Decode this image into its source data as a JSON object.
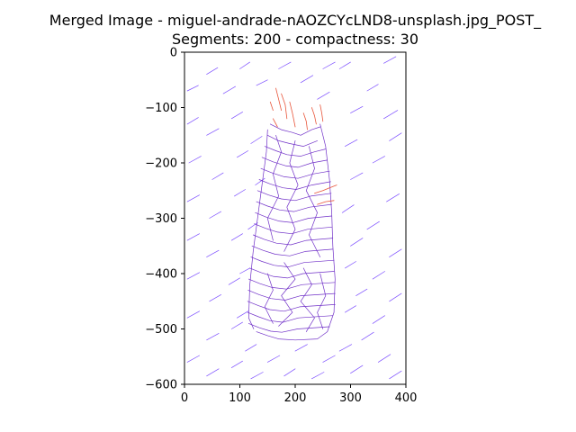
{
  "chart_data": {
    "type": "line",
    "title": "Merged Image - miguel-andrade-nAOZCYcLND8-unsplash.jpg_POST_",
    "subtitle": "Segments: 200 - compactness: 30",
    "xlim": [
      0,
      400
    ],
    "ylim": [
      -600,
      0
    ],
    "x_ticks": [
      {
        "value": 0,
        "label": "0"
      },
      {
        "value": 100,
        "label": "100"
      },
      {
        "value": 200,
        "label": "200"
      },
      {
        "value": 300,
        "label": "300"
      },
      {
        "value": 400,
        "label": "400"
      }
    ],
    "y_ticks": [
      {
        "value": 0,
        "label": "0"
      },
      {
        "value": -100,
        "label": "−100"
      },
      {
        "value": -200,
        "label": "−200"
      },
      {
        "value": -300,
        "label": "−300"
      },
      {
        "value": -400,
        "label": "−400"
      },
      {
        "value": -500,
        "label": "−500"
      },
      {
        "value": -600,
        "label": "−600"
      }
    ],
    "grid": false,
    "legend": "none",
    "colors": {
      "field_strokes": "#7b4dff",
      "object_strokes": "#7030c8",
      "highlight_strokes": "#e8553a"
    },
    "field_segments": [
      [
        [
          5,
          -70
        ],
        [
          25,
          -60
        ]
      ],
      [
        [
          40,
          -40
        ],
        [
          60,
          -28
        ]
      ],
      [
        [
          70,
          -75
        ],
        [
          92,
          -62
        ]
      ],
      [
        [
          100,
          -30
        ],
        [
          118,
          -18
        ]
      ],
      [
        [
          130,
          -60
        ],
        [
          150,
          -50
        ]
      ],
      [
        [
          280,
          -30
        ],
        [
          300,
          -18
        ]
      ],
      [
        [
          330,
          -70
        ],
        [
          350,
          -58
        ]
      ],
      [
        [
          360,
          -20
        ],
        [
          382,
          -8
        ]
      ],
      [
        [
          240,
          -85
        ],
        [
          262,
          -72
        ]
      ],
      [
        [
          300,
          -110
        ],
        [
          322,
          -98
        ]
      ],
      [
        [
          360,
          -120
        ],
        [
          385,
          -105
        ]
      ],
      [
        [
          5,
          -130
        ],
        [
          25,
          -118
        ]
      ],
      [
        [
          40,
          -150
        ],
        [
          62,
          -138
        ]
      ],
      [
        [
          85,
          -120
        ],
        [
          105,
          -108
        ]
      ],
      [
        [
          120,
          -165
        ],
        [
          140,
          -152
        ]
      ],
      [
        [
          8,
          -200
        ],
        [
          30,
          -188
        ]
      ],
      [
        [
          50,
          -230
        ],
        [
          70,
          -218
        ]
      ],
      [
        [
          95,
          -190
        ],
        [
          115,
          -178
        ]
      ],
      [
        [
          128,
          -240
        ],
        [
          145,
          -228
        ]
      ],
      [
        [
          290,
          -170
        ],
        [
          312,
          -158
        ]
      ],
      [
        [
          340,
          -200
        ],
        [
          362,
          -188
        ]
      ],
      [
        [
          370,
          -160
        ],
        [
          392,
          -146
        ]
      ],
      [
        [
          300,
          -230
        ],
        [
          322,
          -218
        ]
      ],
      [
        [
          5,
          -270
        ],
        [
          27,
          -258
        ]
      ],
      [
        [
          45,
          -300
        ],
        [
          66,
          -288
        ]
      ],
      [
        [
          90,
          -260
        ],
        [
          110,
          -248
        ]
      ],
      [
        [
          115,
          -320
        ],
        [
          132,
          -308
        ]
      ],
      [
        [
          285,
          -290
        ],
        [
          306,
          -276
        ]
      ],
      [
        [
          330,
          -320
        ],
        [
          352,
          -306
        ]
      ],
      [
        [
          365,
          -270
        ],
        [
          388,
          -256
        ]
      ],
      [
        [
          300,
          -350
        ],
        [
          322,
          -336
        ]
      ],
      [
        [
          5,
          -340
        ],
        [
          27,
          -328
        ]
      ],
      [
        [
          40,
          -370
        ],
        [
          62,
          -358
        ]
      ],
      [
        [
          85,
          -340
        ],
        [
          105,
          -328
        ]
      ],
      [
        [
          100,
          -400
        ],
        [
          118,
          -390
        ]
      ],
      [
        [
          290,
          -390
        ],
        [
          310,
          -378
        ]
      ],
      [
        [
          340,
          -410
        ],
        [
          362,
          -396
        ]
      ],
      [
        [
          370,
          -370
        ],
        [
          392,
          -356
        ]
      ],
      [
        [
          310,
          -440
        ],
        [
          330,
          -428
        ]
      ],
      [
        [
          5,
          -410
        ],
        [
          27,
          -398
        ]
      ],
      [
        [
          45,
          -450
        ],
        [
          66,
          -438
        ]
      ],
      [
        [
          80,
          -420
        ],
        [
          100,
          -408
        ]
      ],
      [
        [
          95,
          -480
        ],
        [
          115,
          -468
        ]
      ],
      [
        [
          290,
          -470
        ],
        [
          310,
          -458
        ]
      ],
      [
        [
          340,
          -490
        ],
        [
          362,
          -476
        ]
      ],
      [
        [
          370,
          -450
        ],
        [
          392,
          -436
        ]
      ],
      [
        [
          320,
          -520
        ],
        [
          342,
          -506
        ]
      ],
      [
        [
          5,
          -480
        ],
        [
          27,
          -468
        ]
      ],
      [
        [
          40,
          -520
        ],
        [
          62,
          -508
        ]
      ],
      [
        [
          85,
          -500
        ],
        [
          105,
          -488
        ]
      ],
      [
        [
          110,
          -540
        ],
        [
          130,
          -528
        ]
      ],
      [
        [
          150,
          -560
        ],
        [
          172,
          -548
        ]
      ],
      [
        [
          200,
          -540
        ],
        [
          222,
          -528
        ]
      ],
      [
        [
          250,
          -560
        ],
        [
          272,
          -548
        ]
      ],
      [
        [
          280,
          -540
        ],
        [
          302,
          -528
        ]
      ],
      [
        [
          5,
          -560
        ],
        [
          27,
          -548
        ]
      ],
      [
        [
          40,
          -585
        ],
        [
          62,
          -572
        ]
      ],
      [
        [
          85,
          -570
        ],
        [
          105,
          -558
        ]
      ],
      [
        [
          120,
          -590
        ],
        [
          142,
          -578
        ]
      ],
      [
        [
          180,
          -585
        ],
        [
          200,
          -572
        ]
      ],
      [
        [
          230,
          -590
        ],
        [
          252,
          -578
        ]
      ],
      [
        [
          300,
          -580
        ],
        [
          322,
          -566
        ]
      ],
      [
        [
          350,
          -560
        ],
        [
          372,
          -546
        ]
      ],
      [
        [
          370,
          -590
        ],
        [
          392,
          -576
        ]
      ],
      [
        [
          170,
          -30
        ],
        [
          192,
          -18
        ]
      ],
      [
        [
          210,
          -55
        ],
        [
          232,
          -42
        ]
      ],
      [
        [
          250,
          -30
        ],
        [
          272,
          -18
        ]
      ]
    ],
    "object_segments": [
      [
        [
          155,
          -130
        ],
        [
          175,
          -140
        ],
        [
          195,
          -145
        ],
        [
          210,
          -150
        ],
        [
          230,
          -140
        ],
        [
          245,
          -135
        ]
      ],
      [
        [
          150,
          -150
        ],
        [
          170,
          -160
        ],
        [
          190,
          -165
        ],
        [
          215,
          -170
        ],
        [
          240,
          -160
        ]
      ],
      [
        [
          145,
          -170
        ],
        [
          165,
          -178
        ],
        [
          185,
          -185
        ],
        [
          210,
          -188
        ],
        [
          235,
          -180
        ],
        [
          255,
          -175
        ]
      ],
      [
        [
          140,
          -190
        ],
        [
          160,
          -198
        ],
        [
          182,
          -205
        ],
        [
          205,
          -208
        ],
        [
          230,
          -200
        ],
        [
          258,
          -195
        ]
      ],
      [
        [
          138,
          -210
        ],
        [
          158,
          -218
        ],
        [
          180,
          -225
        ],
        [
          205,
          -228
        ],
        [
          232,
          -220
        ],
        [
          262,
          -215
        ]
      ],
      [
        [
          135,
          -230
        ],
        [
          155,
          -238
        ],
        [
          178,
          -245
        ],
        [
          202,
          -248
        ],
        [
          230,
          -240
        ],
        [
          264,
          -234
        ]
      ],
      [
        [
          132,
          -250
        ],
        [
          152,
          -258
        ],
        [
          175,
          -265
        ],
        [
          200,
          -268
        ],
        [
          228,
          -260
        ],
        [
          265,
          -255
        ]
      ],
      [
        [
          130,
          -270
        ],
        [
          150,
          -278
        ],
        [
          172,
          -285
        ],
        [
          198,
          -288
        ],
        [
          226,
          -280
        ],
        [
          266,
          -275
        ]
      ],
      [
        [
          128,
          -290
        ],
        [
          148,
          -298
        ],
        [
          170,
          -305
        ],
        [
          196,
          -308
        ],
        [
          224,
          -300
        ],
        [
          266,
          -296
        ]
      ],
      [
        [
          126,
          -310
        ],
        [
          146,
          -318
        ],
        [
          168,
          -325
        ],
        [
          194,
          -328
        ],
        [
          222,
          -320
        ],
        [
          266,
          -316
        ]
      ],
      [
        [
          124,
          -330
        ],
        [
          144,
          -338
        ],
        [
          166,
          -345
        ],
        [
          192,
          -348
        ],
        [
          220,
          -340
        ],
        [
          268,
          -336
        ]
      ],
      [
        [
          122,
          -350
        ],
        [
          142,
          -358
        ],
        [
          164,
          -365
        ],
        [
          190,
          -368
        ],
        [
          218,
          -360
        ],
        [
          268,
          -356
        ]
      ],
      [
        [
          120,
          -370
        ],
        [
          140,
          -378
        ],
        [
          162,
          -385
        ],
        [
          188,
          -388
        ],
        [
          216,
          -380
        ],
        [
          270,
          -376
        ]
      ],
      [
        [
          118,
          -390
        ],
        [
          138,
          -398
        ],
        [
          160,
          -405
        ],
        [
          186,
          -408
        ],
        [
          214,
          -400
        ],
        [
          270,
          -396
        ]
      ],
      [
        [
          116,
          -410
        ],
        [
          136,
          -418
        ],
        [
          158,
          -425
        ],
        [
          184,
          -428
        ],
        [
          212,
          -420
        ],
        [
          272,
          -416
        ]
      ],
      [
        [
          115,
          -430
        ],
        [
          135,
          -438
        ],
        [
          156,
          -445
        ],
        [
          182,
          -448
        ],
        [
          210,
          -440
        ],
        [
          272,
          -436
        ]
      ],
      [
        [
          114,
          -450
        ],
        [
          134,
          -458
        ],
        [
          154,
          -465
        ],
        [
          180,
          -468
        ],
        [
          208,
          -460
        ],
        [
          272,
          -456
        ]
      ],
      [
        [
          114,
          -470
        ],
        [
          134,
          -478
        ],
        [
          154,
          -485
        ],
        [
          178,
          -488
        ],
        [
          206,
          -480
        ],
        [
          268,
          -476
        ]
      ],
      [
        [
          116,
          -490
        ],
        [
          136,
          -498
        ],
        [
          156,
          -504
        ],
        [
          176,
          -506
        ],
        [
          204,
          -500
        ],
        [
          262,
          -496
        ]
      ],
      [
        [
          130,
          -505
        ],
        [
          150,
          -512
        ],
        [
          170,
          -518
        ],
        [
          200,
          -520
        ],
        [
          240,
          -518
        ],
        [
          258,
          -505
        ]
      ],
      [
        [
          150,
          -140
        ],
        [
          148,
          -180
        ],
        [
          140,
          -240
        ],
        [
          132,
          -300
        ],
        [
          124,
          -360
        ],
        [
          118,
          -420
        ],
        [
          116,
          -480
        ],
        [
          125,
          -500
        ]
      ],
      [
        [
          245,
          -130
        ],
        [
          255,
          -170
        ],
        [
          262,
          -230
        ],
        [
          266,
          -290
        ],
        [
          268,
          -350
        ],
        [
          272,
          -410
        ],
        [
          270,
          -470
        ],
        [
          258,
          -505
        ]
      ],
      [
        [
          165,
          -150
        ],
        [
          175,
          -180
        ],
        [
          160,
          -220
        ],
        [
          170,
          -260
        ],
        [
          150,
          -300
        ],
        [
          160,
          -340
        ]
      ],
      [
        [
          200,
          -160
        ],
        [
          190,
          -200
        ],
        [
          205,
          -240
        ],
        [
          185,
          -280
        ],
        [
          200,
          -320
        ],
        [
          180,
          -360
        ]
      ],
      [
        [
          225,
          -170
        ],
        [
          235,
          -210
        ],
        [
          220,
          -250
        ],
        [
          240,
          -290
        ],
        [
          225,
          -330
        ],
        [
          245,
          -370
        ]
      ],
      [
        [
          180,
          -380
        ],
        [
          200,
          -410
        ],
        [
          175,
          -440
        ],
        [
          195,
          -470
        ],
        [
          170,
          -495
        ]
      ],
      [
        [
          215,
          -390
        ],
        [
          230,
          -420
        ],
        [
          210,
          -450
        ],
        [
          235,
          -480
        ],
        [
          220,
          -505
        ]
      ],
      [
        [
          150,
          -400
        ],
        [
          160,
          -430
        ],
        [
          145,
          -460
        ],
        [
          160,
          -490
        ]
      ],
      [
        [
          245,
          -400
        ],
        [
          255,
          -440
        ],
        [
          240,
          -470
        ],
        [
          250,
          -500
        ]
      ]
    ],
    "highlight_segments": [
      [
        [
          165,
          -65
        ],
        [
          170,
          -85
        ],
        [
          175,
          -105
        ]
      ],
      [
        [
          175,
          -75
        ],
        [
          182,
          -95
        ],
        [
          185,
          -120
        ]
      ],
      [
        [
          190,
          -90
        ],
        [
          195,
          -110
        ],
        [
          200,
          -135
        ]
      ],
      [
        [
          215,
          -110
        ],
        [
          220,
          -125
        ],
        [
          222,
          -140
        ]
      ],
      [
        [
          230,
          -100
        ],
        [
          235,
          -115
        ],
        [
          238,
          -130
        ]
      ],
      [
        [
          245,
          -95
        ],
        [
          248,
          -110
        ],
        [
          250,
          -125
        ]
      ],
      [
        [
          155,
          -90
        ],
        [
          160,
          -105
        ]
      ],
      [
        [
          160,
          -120
        ],
        [
          168,
          -135
        ]
      ],
      [
        [
          235,
          -255
        ],
        [
          250,
          -250
        ],
        [
          262,
          -245
        ],
        [
          275,
          -240
        ]
      ],
      [
        [
          240,
          -275
        ],
        [
          255,
          -270
        ],
        [
          270,
          -268
        ]
      ]
    ]
  }
}
